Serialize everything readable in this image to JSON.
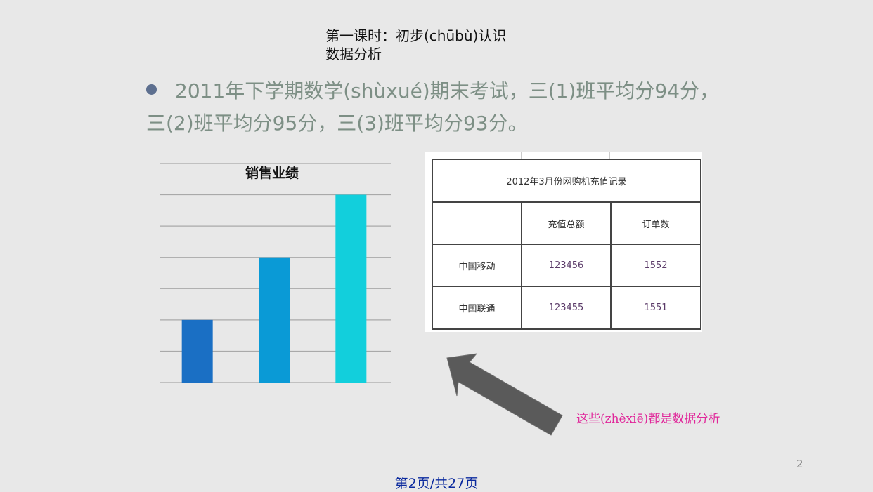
{
  "slide": {
    "title_line1": "第一课时：初步(chūbù)认识",
    "title_line2": "数据分析",
    "bullet": "2011年下学期数学(shùxué)期末考试，三(1)班平均分94分，三(2)班平均分95分，三(3)班平均分93分。",
    "caption": "这些(zhèxiē)都是数据分析",
    "page_number": "2",
    "footer": "第2页/共27页"
  },
  "chart_data": {
    "type": "bar",
    "title": "销售业绩",
    "categories": [
      "",
      "",
      ""
    ],
    "values": [
      2,
      4,
      6
    ],
    "ylim": [
      0,
      7
    ],
    "grid": true,
    "colors": [
      "#1a6fc4",
      "#0a9ad6",
      "#12cfdc"
    ]
  },
  "table": {
    "title": "2012年3月份网购机充值记录",
    "headers": [
      "",
      "充值总额",
      "订单数"
    ],
    "rows": [
      [
        "中国移动",
        "123456",
        "1552"
      ],
      [
        "中国联通",
        "123455",
        "1551"
      ]
    ]
  },
  "colors": {
    "bullet_text": "#7d8f85",
    "caption": "#e0279a",
    "footer": "#0b2a9e",
    "arrow": "#5a5a5a"
  }
}
